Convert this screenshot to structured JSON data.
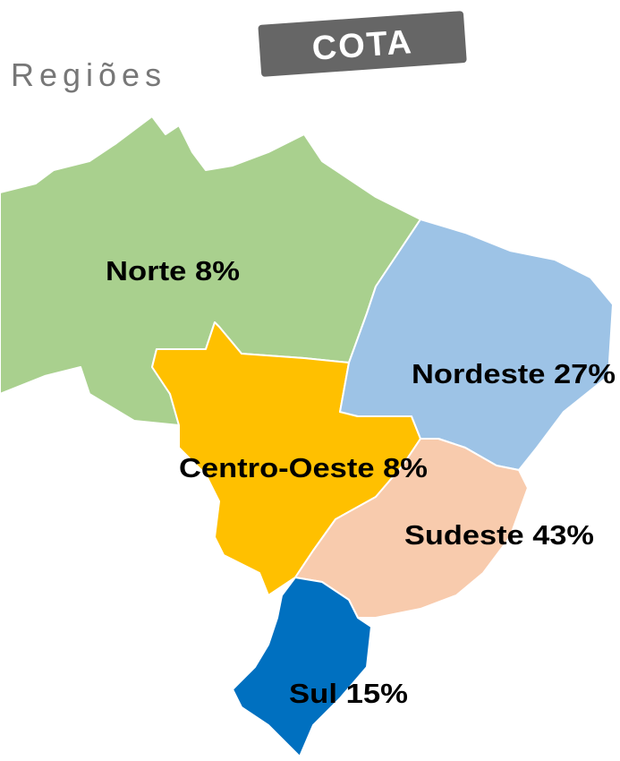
{
  "header": {
    "title": "Regiões",
    "badge": "COTA"
  },
  "regions": [
    {
      "label": "Norte 8%"
    },
    {
      "label": "Nordeste 27%"
    },
    {
      "label": "Centro-Oeste 8%"
    },
    {
      "label": "Sudeste 43%"
    },
    {
      "label": "Sul 15%"
    }
  ]
}
